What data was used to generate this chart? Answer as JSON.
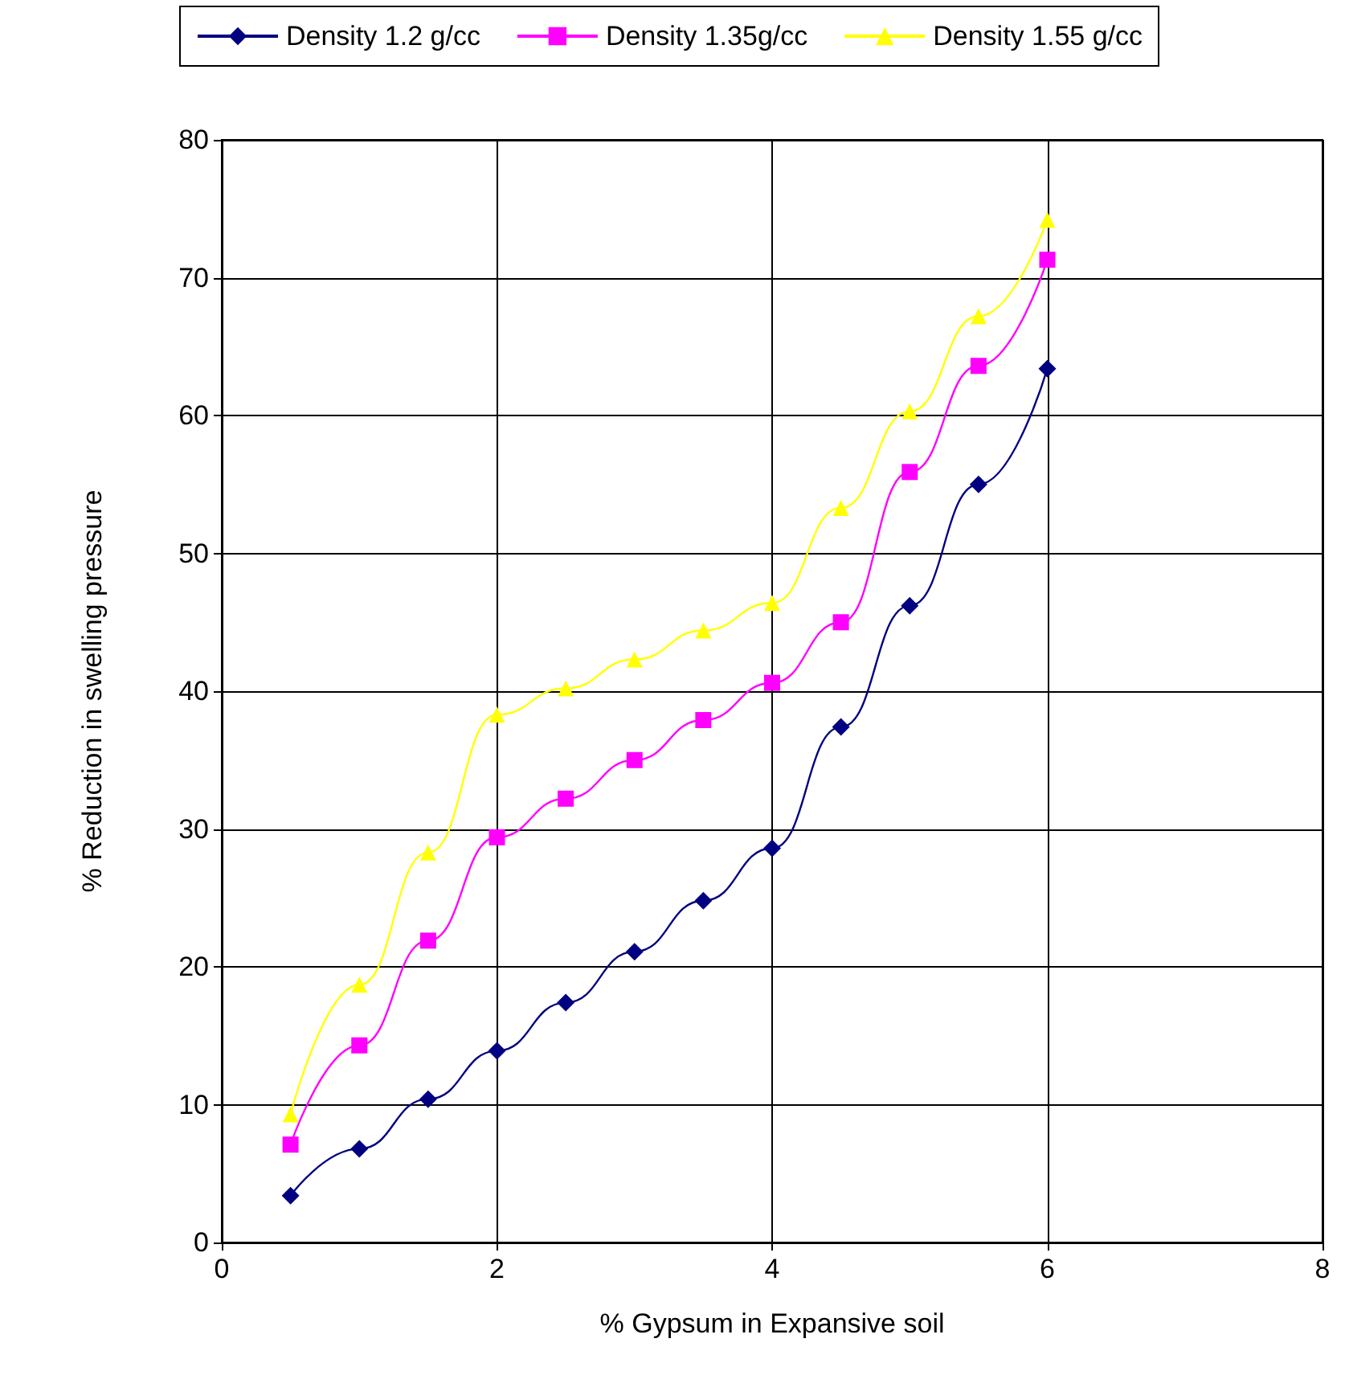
{
  "chart_data": {
    "type": "line",
    "xlabel": "% Gypsum in Expansive soil",
    "ylabel": "% Reduction in swelling pressure",
    "x": [
      0.5,
      1,
      1.5,
      2,
      2.5,
      3,
      3.5,
      4,
      4.5,
      5,
      5.5,
      6
    ],
    "series": [
      {
        "name": "Density 1.2 g/cc",
        "color": "#000080",
        "marker": "diamond",
        "values": [
          3.4,
          6.8,
          10.4,
          13.9,
          17.4,
          21.1,
          24.8,
          28.6,
          37.4,
          46.2,
          55.0,
          63.4
        ]
      },
      {
        "name": "Density 1.35g/cc",
        "color": "#ff00ff",
        "marker": "square",
        "values": [
          7.1,
          14.3,
          21.9,
          29.4,
          32.2,
          35.0,
          37.9,
          40.6,
          45.0,
          55.9,
          63.6,
          71.3
        ]
      },
      {
        "name": "Density 1.55 g/cc",
        "color": "#ffff00",
        "marker": "triangle",
        "values": [
          9.3,
          18.7,
          28.3,
          38.3,
          40.2,
          42.3,
          44.4,
          46.4,
          53.3,
          60.3,
          67.2,
          74.2
        ]
      }
    ],
    "xlim": [
      0,
      8
    ],
    "xticks": [
      0,
      2,
      4,
      6,
      8
    ],
    "ylim": [
      0,
      80
    ],
    "yticks": [
      0,
      10,
      20,
      30,
      40,
      50,
      60,
      70,
      80
    ],
    "grid": true,
    "legend": "top",
    "line_style": "solid"
  }
}
